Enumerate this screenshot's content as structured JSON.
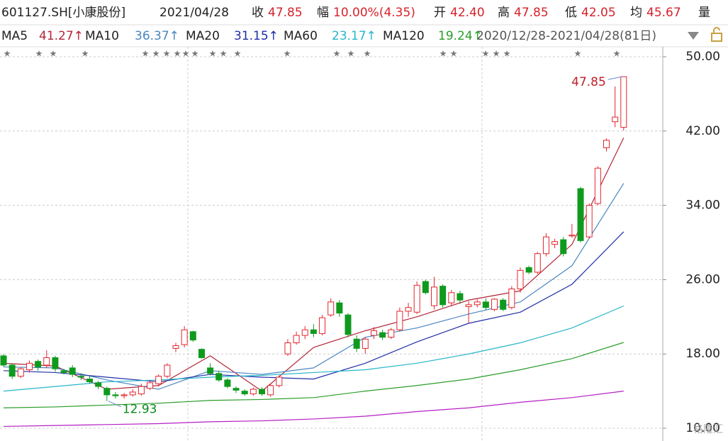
{
  "header": {
    "code": "601127.SH[小康股份]",
    "date": "2021/04/28",
    "close_label": "收",
    "close": "47.85",
    "change_label": "幅",
    "change": "10.00%(4.35)",
    "open_label": "开",
    "open": "42.40",
    "high_label": "高",
    "high": "47.85",
    "low_label": "低",
    "low": "42.05",
    "avg_label": "均",
    "avg": "45.67",
    "volume_label": "量",
    "range": "2020/12/28-2021/04/28(81日)"
  },
  "chart_data": {
    "type": "candlestick",
    "up_color": "#e3262e",
    "down_color": "#0f9a1e",
    "open": [
      17.8,
      16.8,
      15.6,
      16.3,
      17.2,
      16.8,
      17.6,
      16.2,
      16.5,
      15.6,
      15.3,
      14.9,
      14.3,
      13.6,
      13.5,
      13.6,
      13.7,
      14.3,
      14.8,
      15.6,
      18.6,
      19.0,
      20.4,
      18.5,
      16.5,
      15.9,
      15.2,
      14.3,
      14.0,
      13.7,
      14.2,
      13.6,
      14.6,
      18.0,
      19.2,
      20.0,
      20.6,
      20.2,
      22.2,
      23.5,
      22.2,
      19.6,
      18.6,
      20.0,
      20.3,
      19.8,
      20.6,
      22.6,
      22.5,
      25.8,
      23.2,
      25.3,
      23.5,
      24.5,
      23.1,
      23.3,
      23.6,
      22.8,
      23.8,
      23.0,
      25.0,
      27.3,
      26.8,
      28.8,
      29.8,
      30.3,
      30.7,
      35.8,
      30.6,
      34.2,
      40.2,
      43.0,
      42.4
    ],
    "high": [
      18.0,
      17.0,
      16.6,
      17.3,
      17.4,
      18.4,
      17.8,
      16.4,
      16.8,
      15.9,
      15.6,
      15.1,
      14.5,
      13.9,
      13.8,
      14.2,
      14.8,
      15.2,
      15.8,
      17.0,
      19.2,
      21.0,
      20.5,
      18.6,
      17.0,
      16.2,
      15.4,
      14.5,
      14.2,
      14.4,
      14.4,
      14.8,
      15.7,
      19.6,
      20.4,
      21.0,
      21.2,
      22.2,
      24.0,
      23.8,
      22.4,
      20.0,
      19.8,
      20.9,
      20.6,
      20.8,
      23.0,
      23.5,
      25.8,
      26.0,
      26.3,
      25.5,
      24.9,
      24.8,
      23.7,
      23.9,
      24.0,
      24.0,
      24.0,
      25.3,
      27.3,
      27.5,
      29.0,
      31.0,
      30.4,
      30.6,
      32.0,
      36.0,
      34.2,
      38.2,
      41.2,
      46.8,
      47.85
    ],
    "low": [
      16.6,
      15.3,
      15.4,
      16.0,
      16.2,
      16.5,
      16.1,
      15.8,
      15.5,
      15.2,
      14.8,
      14.2,
      12.93,
      13.2,
      13.2,
      13.4,
      13.5,
      14.1,
      14.5,
      15.4,
      18.2,
      18.7,
      19.3,
      17.5,
      15.7,
      15.0,
      14.3,
      13.8,
      13.5,
      13.5,
      13.5,
      13.4,
      14.4,
      17.8,
      19.0,
      19.6,
      19.8,
      20.0,
      22.0,
      22.0,
      19.8,
      18.2,
      18.0,
      19.6,
      19.5,
      19.6,
      20.4,
      22.0,
      22.3,
      24.4,
      22.8,
      23.0,
      23.2,
      23.4,
      21.3,
      23.0,
      22.7,
      22.6,
      22.6,
      22.8,
      24.6,
      26.6,
      26.6,
      28.5,
      29.4,
      28.5,
      30.5,
      30.0,
      30.4,
      34.0,
      39.8,
      42.4,
      42.05
    ],
    "close": [
      16.8,
      15.6,
      16.4,
      17.0,
      16.6,
      17.6,
      16.4,
      16.0,
      15.8,
      15.5,
      15.0,
      14.5,
      13.6,
      13.5,
      13.6,
      13.9,
      14.5,
      14.9,
      15.6,
      16.8,
      18.9,
      20.6,
      19.5,
      17.6,
      15.9,
      15.2,
      14.5,
      14.1,
      13.7,
      14.2,
      13.7,
      14.6,
      15.5,
      19.2,
      20.0,
      20.6,
      20.2,
      21.9,
      23.6,
      22.4,
      20.1,
      18.6,
      19.6,
      20.5,
      19.8,
      20.6,
      22.6,
      23.0,
      25.4,
      24.6,
      25.2,
      23.3,
      24.6,
      23.8,
      23.3,
      23.6,
      23.0,
      23.9,
      22.8,
      25.0,
      27.0,
      26.8,
      28.8,
      30.6,
      30.1,
      28.8,
      30.8,
      30.2,
      34.0,
      38.0,
      41.0,
      43.5,
      47.85
    ],
    "series": [
      {
        "name": "MA5",
        "value_label": "41.27↑",
        "color": "#b3263a",
        "x": [
          0,
          6,
          12,
          18,
          24,
          30,
          36,
          42,
          48,
          54,
          60,
          66,
          72
        ],
        "values": [
          17.0,
          16.7,
          14.2,
          14.6,
          17.8,
          14.0,
          18.7,
          20.5,
          22.0,
          23.8,
          24.8,
          29.8,
          41.27
        ]
      },
      {
        "name": "MA10",
        "value_label": "36.37↑",
        "color": "#4a86c0",
        "x": [
          0,
          6,
          12,
          18,
          24,
          30,
          36,
          42,
          48,
          54,
          60,
          66,
          72
        ],
        "values": [
          16.6,
          16.5,
          15.2,
          14.2,
          16.2,
          15.8,
          16.5,
          19.8,
          20.8,
          22.3,
          23.6,
          27.5,
          36.37
        ]
      },
      {
        "name": "MA20",
        "value_label": "31.15↑",
        "color": "#1f2fa8",
        "x": [
          0,
          6,
          12,
          18,
          24,
          30,
          36,
          42,
          48,
          54,
          60,
          66,
          72
        ],
        "values": [
          16.2,
          16.0,
          15.5,
          15.0,
          15.8,
          15.5,
          15.3,
          17.0,
          19.3,
          21.3,
          22.5,
          25.5,
          31.15
        ]
      },
      {
        "name": "MA60",
        "value_label": "23.17↑",
        "color": "#27b6c9",
        "x": [
          0,
          6,
          12,
          18,
          24,
          30,
          36,
          42,
          48,
          54,
          60,
          66,
          72
        ],
        "values": [
          14.0,
          14.5,
          15.0,
          15.2,
          15.5,
          15.7,
          16.0,
          16.3,
          17.0,
          18.0,
          19.2,
          20.8,
          23.17
        ]
      },
      {
        "name": "MA120",
        "value_label": "19.24↑",
        "color": "#2a9d2a",
        "x": [
          0,
          6,
          12,
          18,
          24,
          30,
          36,
          42,
          48,
          54,
          60,
          66,
          72
        ],
        "values": [
          12.2,
          12.3,
          12.5,
          12.7,
          13.0,
          13.1,
          13.3,
          14.0,
          14.6,
          15.3,
          16.3,
          17.5,
          19.24
        ]
      },
      {
        "color": "#b51fc4",
        "x": [
          0,
          6,
          12,
          18,
          24,
          30,
          36,
          42,
          48,
          54,
          60,
          66,
          72
        ],
        "values": [
          10.2,
          10.3,
          10.4,
          10.5,
          10.7,
          10.8,
          11.0,
          11.3,
          11.8,
          12.2,
          12.8,
          13.3,
          14.0
        ]
      }
    ],
    "ylim": [
      8.63,
      51.22
    ],
    "yticks": [
      {
        "value": 10,
        "label": "10.00"
      },
      {
        "value": 18,
        "label": "18.00"
      },
      {
        "value": 26,
        "label": "26.00"
      },
      {
        "value": 34,
        "label": "34.00"
      },
      {
        "value": 42,
        "label": "42.00"
      },
      {
        "value": 50,
        "label": "50.00"
      }
    ],
    "grid": true,
    "watermark": "格隆汇"
  }
}
